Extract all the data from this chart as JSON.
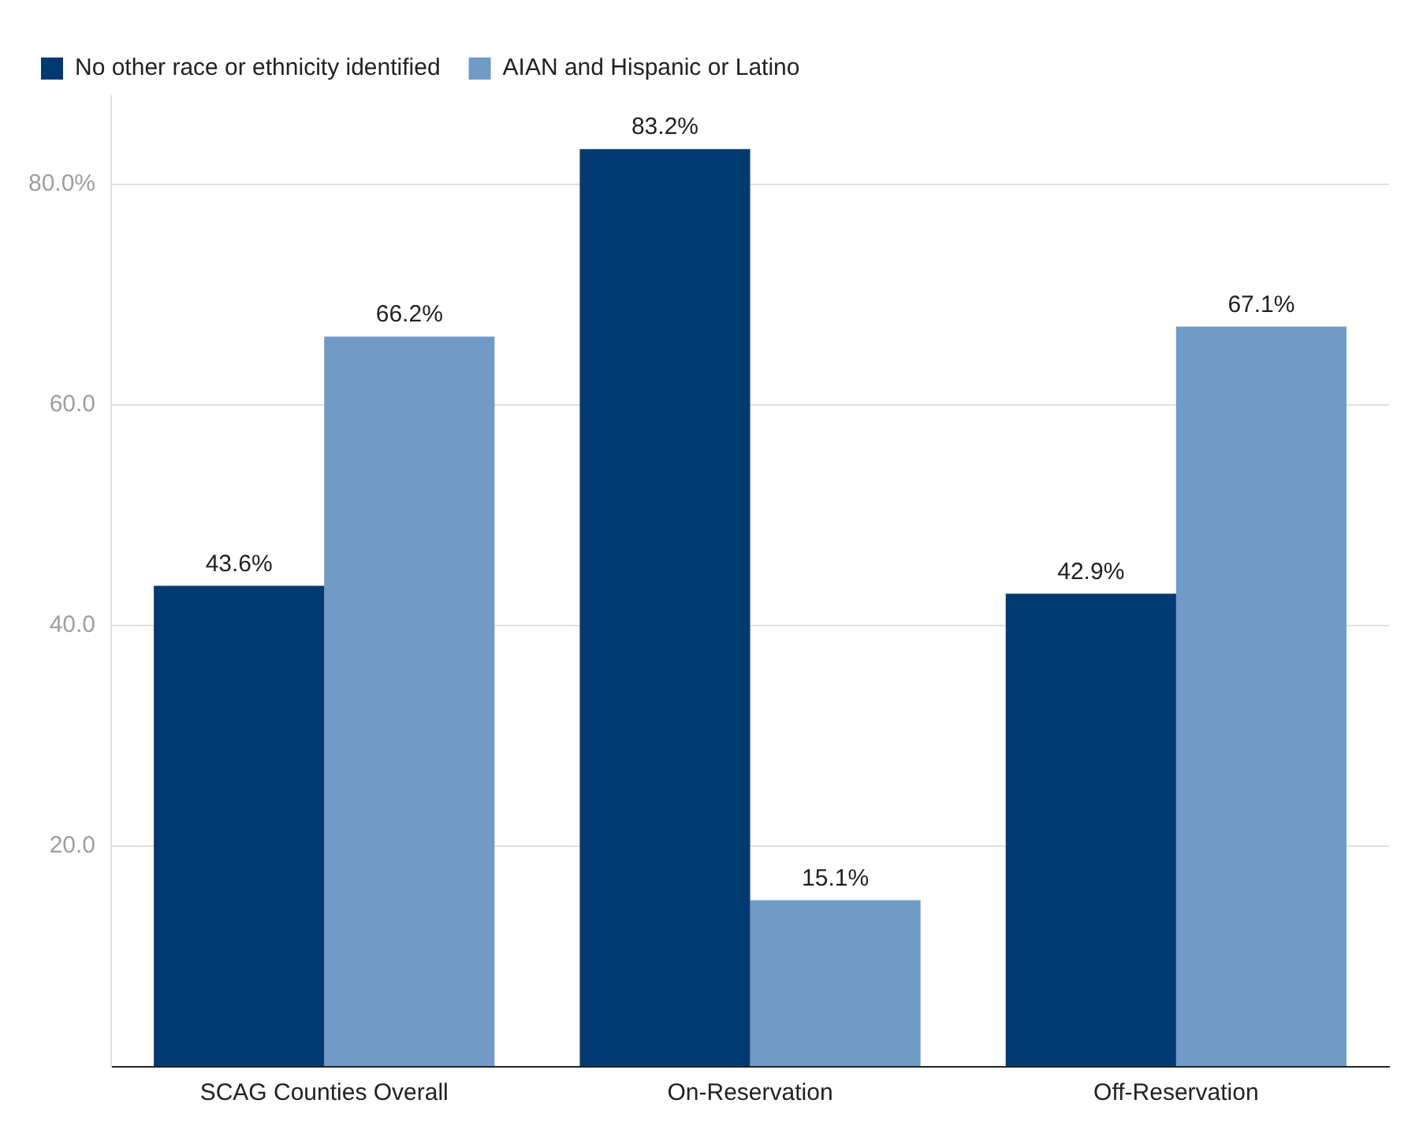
{
  "chart_data": {
    "type": "bar",
    "categories": [
      "SCAG Counties Overall",
      "On-Reservation",
      "Off-Reservation"
    ],
    "series": [
      {
        "name": "No other race or ethnicity identified",
        "color": "#003a70",
        "values": [
          43.6,
          83.2,
          42.9
        ],
        "value_labels": [
          "43.6%",
          "83.2%",
          "42.9%"
        ]
      },
      {
        "name": "AIAN and Hispanic or Latino",
        "color": "#6f9bc6",
        "values": [
          66.2,
          15.1,
          67.1
        ],
        "value_labels": [
          "66.2%",
          "15.1%",
          "67.1%"
        ]
      }
    ],
    "yticks": [
      {
        "value": 0,
        "label": null
      },
      {
        "value": 20,
        "label": "20.0"
      },
      {
        "value": 40,
        "label": "40.0"
      },
      {
        "value": 60,
        "label": "60.0"
      },
      {
        "value": 80,
        "label": "80.0%"
      }
    ],
    "ylim": [
      0,
      88
    ],
    "grid": "y",
    "legend": "top left"
  }
}
